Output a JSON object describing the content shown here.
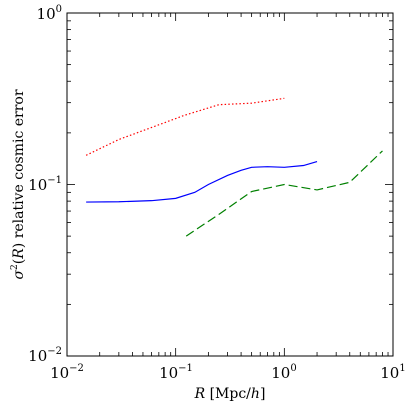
{
  "chart_data": {
    "type": "line",
    "title": "",
    "xlabel": {
      "var": "R",
      "rest": " [Mpc/",
      "unit": "h",
      "close": "]"
    },
    "ylabel": {
      "sigma": "σ",
      "sq": "2",
      "pre": "(",
      "var": "R",
      "post": ") relative cosmic error"
    },
    "xscale": "log",
    "yscale": "log",
    "xlim": [
      0.01,
      10
    ],
    "ylim": [
      0.01,
      1
    ],
    "grid": false,
    "legend": "none",
    "x_ticks": [
      {
        "base": "10",
        "exp": "−2"
      },
      {
        "base": "10",
        "exp": "−1"
      },
      {
        "base": "10",
        "exp": "0"
      },
      {
        "base": "10",
        "exp": "1"
      }
    ],
    "y_ticks": [
      {
        "base": "10",
        "exp": "−2"
      },
      {
        "base": "10",
        "exp": "−1"
      },
      {
        "base": "10",
        "exp": "0"
      }
    ],
    "series": [
      {
        "color": "#ff0000",
        "style": "dotted",
        "points": [
          [
            0.015,
            0.148
          ],
          [
            0.03,
            0.183
          ],
          [
            0.06,
            0.215
          ],
          [
            0.12,
            0.253
          ],
          [
            0.25,
            0.292
          ],
          [
            0.5,
            0.298
          ],
          [
            1.0,
            0.318
          ]
        ]
      },
      {
        "color": "#0000ff",
        "style": "solid",
        "points": [
          [
            0.015,
            0.079
          ],
          [
            0.03,
            0.0793
          ],
          [
            0.06,
            0.0805
          ],
          [
            0.1,
            0.083
          ],
          [
            0.15,
            0.09
          ],
          [
            0.2,
            0.1
          ],
          [
            0.3,
            0.113
          ],
          [
            0.4,
            0.121
          ],
          [
            0.5,
            0.126
          ],
          [
            0.7,
            0.127
          ],
          [
            1.0,
            0.126
          ],
          [
            1.5,
            0.129
          ],
          [
            2.0,
            0.136
          ]
        ]
      },
      {
        "color": "#008000",
        "style": "dashed",
        "points": [
          [
            0.125,
            0.05
          ],
          [
            0.25,
            0.067
          ],
          [
            0.5,
            0.091
          ],
          [
            1.0,
            0.1
          ],
          [
            2.0,
            0.093
          ],
          [
            4.0,
            0.103
          ],
          [
            8.0,
            0.157
          ]
        ]
      }
    ]
  }
}
